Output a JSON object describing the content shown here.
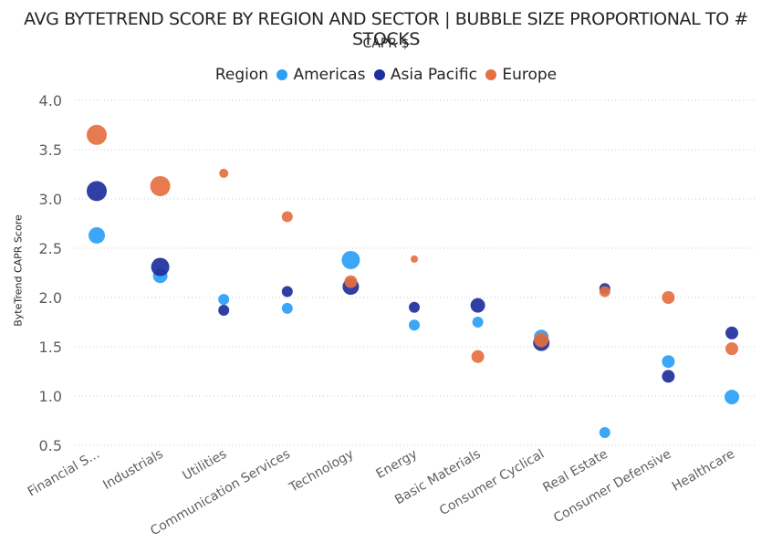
{
  "chart_data": {
    "type": "scatter",
    "title": "AVG BYTETREND SCORE BY REGION AND SECTOR | BUBBLE SIZE PROPORTIONAL TO # STOCKS",
    "subtitle": "CAPR $",
    "ylabel": "ByteTrend CAPR Score",
    "xlabel": "",
    "ylim": [
      0.5,
      4.0
    ],
    "yticks": [
      "0.5",
      "1.0",
      "1.5",
      "2.0",
      "2.5",
      "3.0",
      "3.5",
      "4.0"
    ],
    "grid": true,
    "legend_position": "top",
    "legend_title": "Region",
    "categories": [
      "Financial S...",
      "Industrials",
      "Utilities",
      "Communication Services",
      "Technology",
      "Energy",
      "Basic Materials",
      "Consumer Cyclical",
      "Real Estate",
      "Consumer Defensive",
      "Healthcare"
    ],
    "series": [
      {
        "name": "Americas",
        "color": "#2b9ff5",
        "values": [
          2.63,
          2.22,
          1.98,
          1.89,
          2.38,
          1.72,
          1.75,
          1.6,
          0.63,
          1.35,
          0.99
        ],
        "sizes": [
          9,
          8,
          6,
          6,
          10,
          6,
          6,
          8,
          6,
          7,
          8
        ]
      },
      {
        "name": "Asia Pacific",
        "color": "#1d2f9c",
        "values": [
          3.08,
          2.31,
          1.87,
          2.06,
          2.11,
          1.9,
          1.92,
          1.54,
          2.09,
          1.2,
          1.64
        ],
        "sizes": [
          11,
          10,
          6,
          6,
          9,
          6,
          8,
          9,
          6,
          7,
          7
        ]
      },
      {
        "name": "Europe",
        "color": "#e56f3f",
        "values": [
          3.65,
          3.13,
          3.26,
          2.82,
          2.16,
          2.39,
          1.4,
          1.57,
          2.06,
          2.0,
          1.48
        ],
        "sizes": [
          11,
          11,
          5,
          6,
          7,
          4,
          7,
          8,
          6,
          7,
          7
        ]
      }
    ]
  }
}
